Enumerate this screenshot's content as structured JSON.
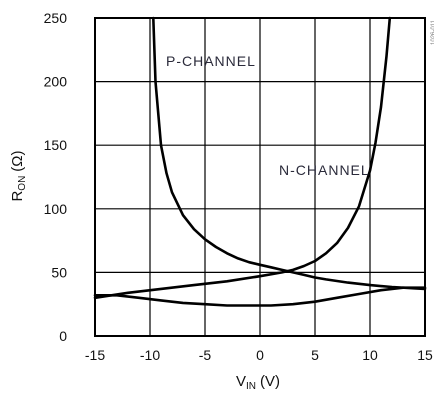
{
  "chart_data": {
    "type": "line",
    "title": "",
    "xlabel": {
      "main": "V",
      "sub": "IN",
      "unit": "(V)"
    },
    "ylabel": {
      "main": "R",
      "sub": "ON",
      "unit": "(Ω)"
    },
    "xlim": [
      -15,
      15
    ],
    "ylim": [
      0,
      250
    ],
    "xticks": [
      "-15",
      "-10",
      "-5",
      "0",
      "5",
      "10",
      "15"
    ],
    "yticks": [
      "0",
      "50",
      "100",
      "150",
      "200",
      "250"
    ],
    "grid": true,
    "legend": "none",
    "figure_id": "1026-011",
    "series": [
      {
        "name": "P-CHANNEL",
        "color": "#000000",
        "x": [
          -9.7,
          -9.5,
          -9.0,
          -8.5,
          -8.0,
          -7.0,
          -6.0,
          -5.0,
          -4.0,
          -3.0,
          -2.0,
          -1.0,
          0.0,
          1.0,
          2.0,
          3.0,
          4.0,
          5.0,
          6.0,
          8.0,
          10.0,
          12.0,
          14.0,
          15.0
        ],
        "values": [
          250,
          200,
          150,
          128,
          113,
          95,
          84,
          76,
          70,
          65,
          61,
          58,
          56,
          54,
          52,
          50,
          48,
          46,
          44.5,
          42,
          40,
          38.5,
          37.5,
          37
        ]
      },
      {
        "name": "N-CHANNEL",
        "color": "#000000",
        "x": [
          -15,
          -12,
          -9,
          -6,
          -3,
          0,
          2,
          3,
          4,
          5,
          6,
          7,
          8,
          9,
          10,
          10.5,
          11.0,
          11.5,
          11.8
        ],
        "values": [
          30,
          34,
          37,
          40,
          43,
          47,
          50,
          52,
          55,
          59,
          65,
          73,
          85,
          102,
          130,
          152,
          180,
          220,
          250
        ]
      },
      {
        "name": "",
        "color": "#000000",
        "x": [
          -15,
          -13,
          -11,
          -9,
          -7,
          -5,
          -3,
          -1,
          1,
          3,
          5,
          7,
          9,
          11,
          13,
          15
        ],
        "values": [
          32,
          32,
          30,
          28,
          26,
          25,
          24,
          24,
          24,
          25,
          27,
          30,
          33,
          36,
          38,
          38
        ]
      }
    ]
  }
}
